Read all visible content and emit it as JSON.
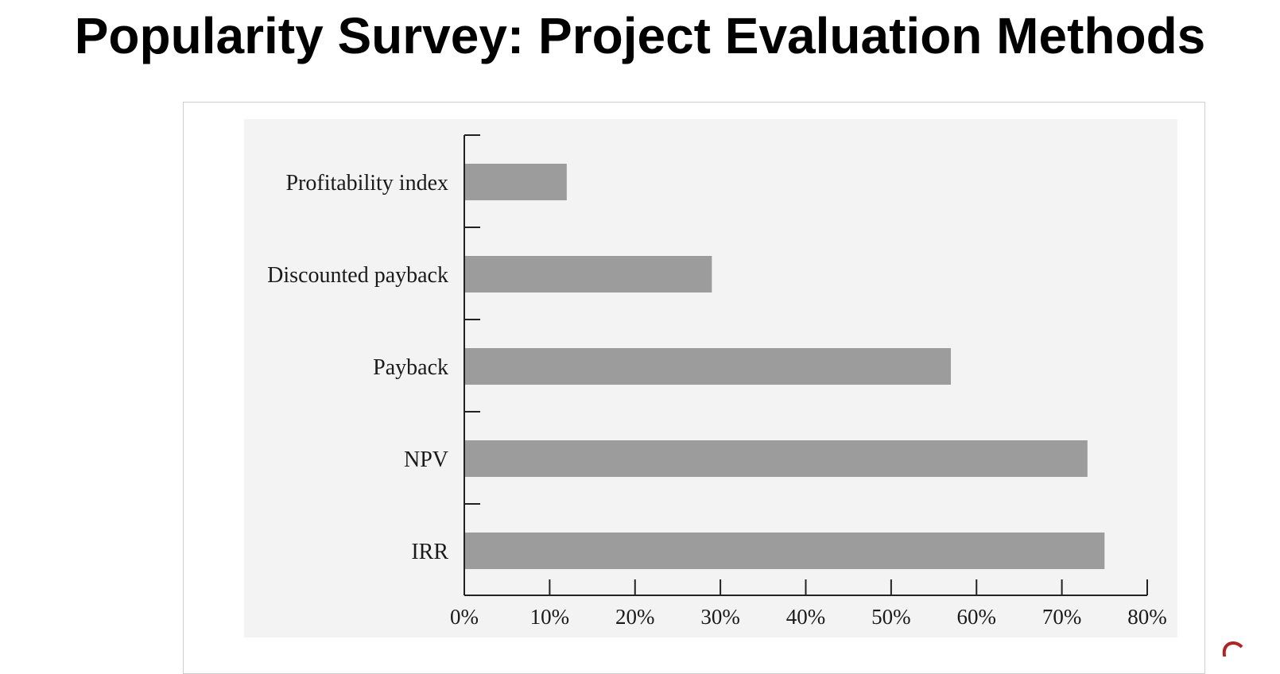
{
  "slide": {
    "title": "Popularity Survey: Project Evaluation Methods"
  },
  "colors": {
    "plot_background": "#f3f3f3",
    "bar_fill": "#9c9c9c",
    "axis": "#222222",
    "corner_mark": "#b22222"
  },
  "chart_data": {
    "type": "bar",
    "orientation": "horizontal",
    "categories": [
      "Profitability index",
      "Discounted payback",
      "Payback",
      "NPV",
      "IRR"
    ],
    "values": [
      12,
      29,
      57,
      73,
      75
    ],
    "value_unit": "%",
    "title": "",
    "xlabel": "",
    "ylabel": "",
    "xlim": [
      0,
      80
    ],
    "x_ticks": [
      "0%",
      "10%",
      "20%",
      "30%",
      "40%",
      "50%",
      "60%",
      "70%",
      "80%"
    ],
    "grid": false,
    "legend": "none"
  }
}
